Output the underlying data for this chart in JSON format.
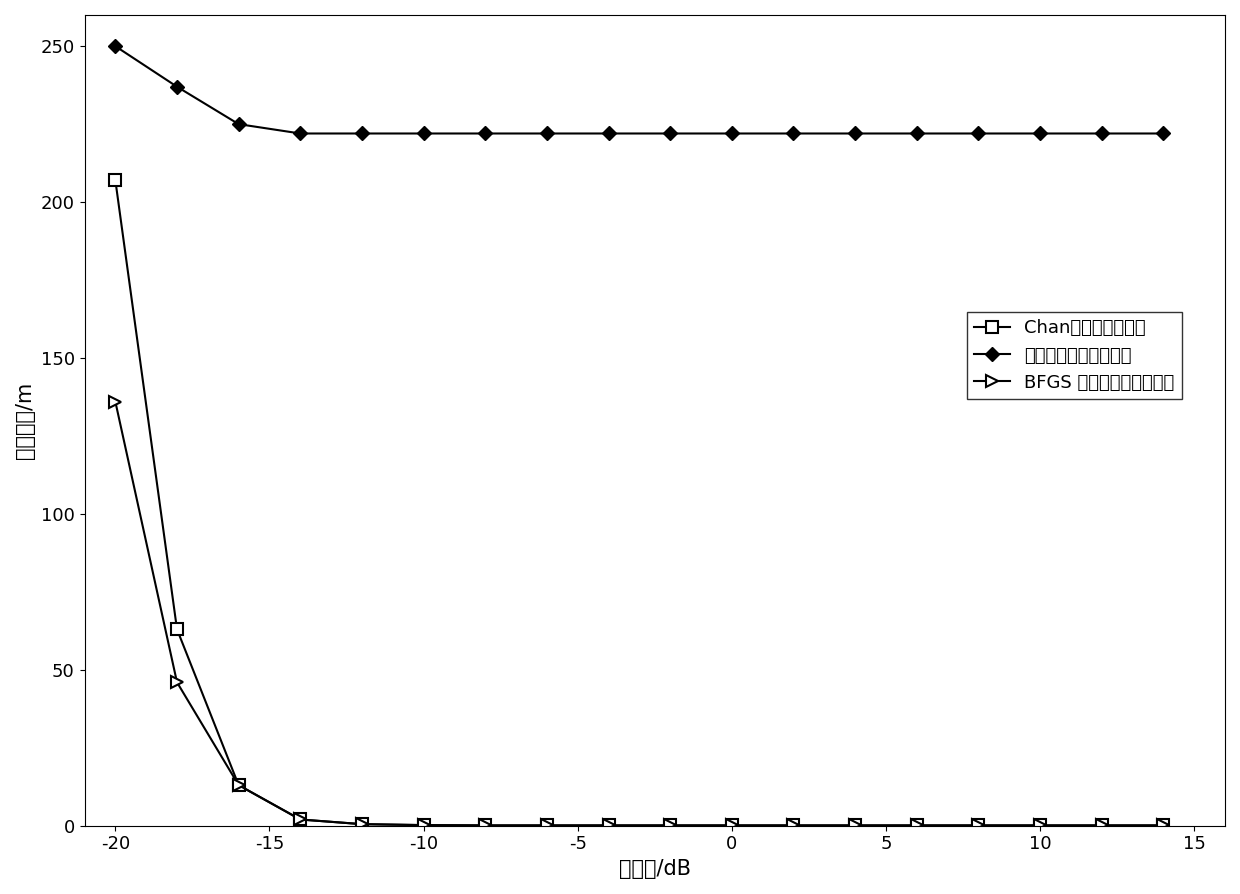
{
  "title": "",
  "xlabel": "信噪比/dB",
  "ylabel": "定位偏差/m",
  "xlim": [
    -21,
    16
  ],
  "ylim": [
    0,
    260
  ],
  "xticks": [
    -20,
    -15,
    -10,
    -5,
    0,
    5,
    10,
    15
  ],
  "yticks": [
    0,
    50,
    100,
    150,
    200,
    250
  ],
  "x": [
    -20,
    -18,
    -16,
    -14,
    -12,
    -10,
    -8,
    -6,
    -4,
    -2,
    0,
    2,
    4,
    6,
    8,
    10,
    12,
    14
  ],
  "chan_y": [
    207,
    63,
    13,
    2,
    0.5,
    0.2,
    0.1,
    0.1,
    0.1,
    0.1,
    0.1,
    0.1,
    0.1,
    0.1,
    0.1,
    0.1,
    0.1,
    0.1
  ],
  "newton_y": [
    250,
    237,
    225,
    222,
    222,
    222,
    222,
    222,
    222,
    222,
    222,
    222,
    222,
    222,
    222,
    222,
    222,
    222
  ],
  "bfgs_y": [
    136,
    46,
    13,
    2,
    0.5,
    0.2,
    0.1,
    0.1,
    0.1,
    0.1,
    0.1,
    0.1,
    0.1,
    0.1,
    0.1,
    0.1,
    0.1,
    0.1
  ],
  "chan_label": "Chan算法的定位偏差",
  "newton_label": "基本牛顿法的定位偏差",
  "bfgs_label": "BFGS 拟牛顿法的定位偏差",
  "line_color": "#000000",
  "bg_color": "#ffffff",
  "legend_fontsize": 13,
  "axis_fontsize": 15,
  "tick_fontsize": 13
}
